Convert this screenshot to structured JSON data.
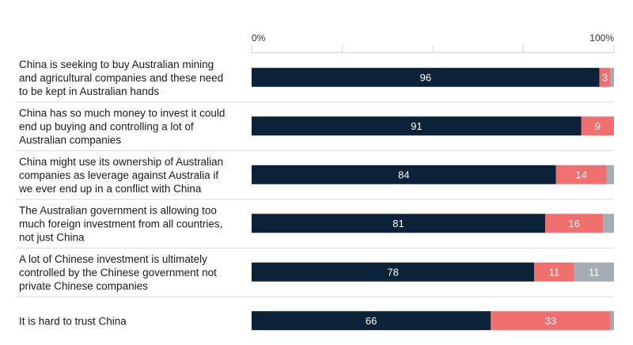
{
  "chart_data": {
    "type": "bar",
    "orientation": "horizontal",
    "stacked": true,
    "xlim": [
      0,
      100
    ],
    "x_ticks": [
      "0%",
      "100%"
    ],
    "grid": true,
    "legend": "none",
    "categories": [
      [
        "China is seeking to buy Australian mining",
        "and agricultural companies and these need",
        "to be kept in Australian hands"
      ],
      [
        "China has so much money to invest it could",
        "end up buying and controlling a lot of",
        "Australian companies"
      ],
      [
        "China might use its ownership of Australian",
        "companies as leverage against Australia if",
        "we ever end up in a conflict with China"
      ],
      [
        "The Australian government is allowing too",
        "much foreign investment from all countries,",
        "not just China"
      ],
      [
        "A lot of Chinese investment is ultimately",
        "controlled by the Chinese government not",
        "private Chinese companies"
      ],
      [
        "It is hard to trust China"
      ]
    ],
    "series": [
      {
        "color": "#0b2238",
        "label_color": "#ffffff",
        "values": [
          96,
          91,
          84,
          81,
          78,
          66
        ],
        "labels": [
          "96",
          "91",
          "84",
          "81",
          "78",
          "66"
        ]
      },
      {
        "color": "#f07070",
        "label_color": "#ffffff",
        "values": [
          3,
          9,
          14,
          16,
          11,
          33
        ],
        "labels": [
          "3",
          "9",
          "14",
          "16",
          "11",
          "33"
        ]
      },
      {
        "color": "#a3acb4",
        "label_color": "#ffffff",
        "values": [
          1,
          0,
          2,
          3,
          11,
          1
        ],
        "labels": [
          "",
          "",
          "",
          "",
          "11",
          ""
        ]
      }
    ]
  }
}
